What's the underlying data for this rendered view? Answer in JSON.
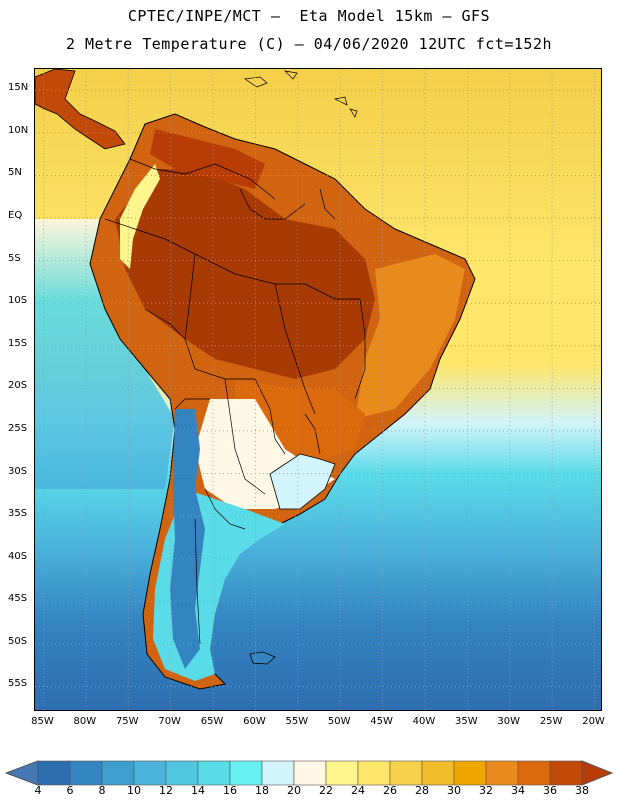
{
  "header": {
    "title_line1": "CPTEC/INPE/MCT –  Eta Model 15km – GFS",
    "title_line2": "2 Metre Temperature (C) – 04/06/2020 12UTC fct=152h"
  },
  "map": {
    "lat_labels": [
      "15N",
      "10N",
      "5N",
      "EQ",
      "5S",
      "10S",
      "15S",
      "20S",
      "25S",
      "30S",
      "35S",
      "40S",
      "45S",
      "50S",
      "55S"
    ],
    "lon_labels": [
      "85W",
      "80W",
      "75W",
      "70W",
      "65W",
      "60W",
      "55W",
      "50W",
      "45W",
      "40W",
      "35W",
      "30W",
      "25W",
      "20W"
    ],
    "lat_range": [
      17.5,
      -58
    ],
    "lon_range": [
      -86,
      -19
    ]
  },
  "legend": {
    "levels": [
      "4",
      "6",
      "8",
      "10",
      "12",
      "14",
      "16",
      "18",
      "20",
      "22",
      "24",
      "26",
      "28",
      "30",
      "32",
      "34",
      "36",
      "38"
    ],
    "colors": [
      "#4578b4",
      "#2d6eb0",
      "#3484c1",
      "#3d9ecf",
      "#4cb4dc",
      "#52c7e0",
      "#5adbe8",
      "#66f0f0",
      "#d2f4fa",
      "#fff8e6",
      "#fef58c",
      "#fde66a",
      "#f6d24c",
      "#f2bd2c",
      "#f0a800",
      "#e88a1c",
      "#db6a0e",
      "#c14a08",
      "#b83c06"
    ]
  },
  "colors": {
    "ocean_north": "#f6d24c",
    "ocean_warm": "#fde66a",
    "ocean_mild": "#fff8e6",
    "ocean_cool": "#4cb4dc",
    "ocean_cold": "#3484c1",
    "ocean_south": "#2d6eb0",
    "land_hot": "#a83a06",
    "land_warm": "#d06410",
    "land_mid": "#e88a1c",
    "andes": "#3484c1",
    "coast_line": "#000000",
    "grid_line": "#9a9a9a"
  }
}
